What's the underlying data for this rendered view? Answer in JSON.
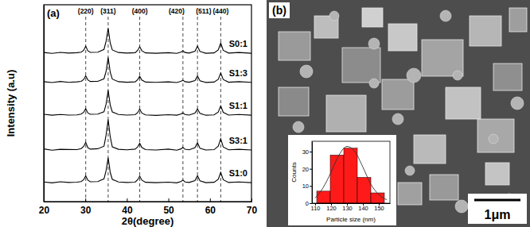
{
  "chart_data": [
    {
      "type": "line",
      "panel_label": "(a)",
      "x_label": "2θ(degree)",
      "y_label": "Intensity (a.u)",
      "xlim": [
        20,
        70
      ],
      "xticks": [
        20,
        30,
        40,
        50,
        60,
        70
      ],
      "ylim": [
        0,
        108
      ],
      "tick_labels": "x",
      "x": [
        20,
        22,
        24,
        26,
        28,
        29,
        29.6,
        30.1,
        30.6,
        31.2,
        33,
        34.5,
        35.0,
        35.5,
        36.0,
        36.5,
        38,
        40,
        42,
        42.6,
        43.1,
        43.6,
        44.5,
        47,
        50,
        52,
        53.0,
        53.5,
        54.0,
        55,
        56.4,
        57.0,
        57.6,
        59,
        61,
        62.0,
        62.6,
        63.2,
        64.5,
        67,
        70
      ],
      "series": [
        {
          "name": "S0:1",
          "color": "#000000",
          "values": [
            81.8,
            81.3,
            81.9,
            81.5,
            81.7,
            82.0,
            83.0,
            85.2,
            82.8,
            81.9,
            82.0,
            83.5,
            88,
            95,
            87,
            83.2,
            81.8,
            81.5,
            81.7,
            83.0,
            85.0,
            82.8,
            81.6,
            81.4,
            81.7,
            81.3,
            82.0,
            82.8,
            81.8,
            81.5,
            82.5,
            85.2,
            82.4,
            81.4,
            81.6,
            83.2,
            87.0,
            83.0,
            81.5,
            81.8,
            81.4
          ]
        },
        {
          "name": "S1:3",
          "color": "#000000",
          "values": [
            65.8,
            65.3,
            65.9,
            65.4,
            65.7,
            66.0,
            67.0,
            69.0,
            66.8,
            65.9,
            66.0,
            67.4,
            71.5,
            79,
            71,
            67.2,
            65.8,
            65.5,
            65.7,
            66.9,
            68.8,
            66.7,
            65.6,
            65.4,
            65.7,
            65.3,
            66.0,
            66.6,
            65.8,
            65.5,
            66.4,
            68.9,
            66.3,
            65.4,
            65.6,
            67.1,
            70.5,
            67.0,
            65.5,
            65.8,
            65.4
          ]
        },
        {
          "name": "S1:1",
          "color": "#000000",
          "values": [
            47.9,
            47.4,
            47.8,
            47.5,
            47.6,
            48.0,
            49.0,
            51.0,
            48.7,
            47.9,
            48.0,
            49.3,
            53.5,
            61,
            53,
            49.2,
            47.8,
            47.5,
            47.7,
            48.8,
            50.8,
            48.6,
            47.6,
            47.3,
            47.7,
            47.4,
            48.0,
            48.7,
            47.8,
            47.5,
            48.5,
            50.8,
            48.4,
            47.4,
            47.6,
            49.1,
            52.5,
            49.0,
            47.5,
            47.8,
            47.4
          ]
        },
        {
          "name": "S3:1",
          "color": "#000000",
          "values": [
            28.9,
            28.2,
            28.7,
            28.6,
            28.5,
            29.1,
            30.3,
            32.5,
            29.6,
            28.8,
            29.0,
            30.4,
            36.5,
            45,
            35.5,
            30.0,
            28.7,
            28.4,
            28.8,
            30.0,
            32.0,
            29.7,
            28.5,
            28.3,
            28.8,
            28.2,
            28.9,
            29.7,
            28.7,
            28.4,
            29.6,
            32.3,
            29.3,
            28.3,
            28.5,
            30.4,
            34.5,
            30.0,
            28.4,
            28.7,
            28.3
          ]
        },
        {
          "name": "S1:0",
          "color": "#000000",
          "values": [
            10.8,
            10.3,
            10.9,
            10.5,
            10.7,
            11.0,
            12.0,
            14.2,
            11.8,
            10.9,
            11.0,
            12.5,
            17,
            24,
            16,
            12.2,
            10.8,
            10.5,
            10.7,
            12.0,
            14.0,
            11.8,
            10.6,
            10.4,
            10.7,
            10.3,
            11.0,
            11.8,
            10.8,
            10.5,
            11.5,
            14.2,
            11.4,
            10.4,
            10.6,
            12.2,
            16.0,
            12.0,
            10.5,
            10.8,
            10.4
          ]
        }
      ],
      "annotations": [
        {
          "text": "(220)",
          "x": 30.1
        },
        {
          "text": "(311)",
          "x": 35.5
        },
        {
          "text": "(400)",
          "x": 43.1
        },
        {
          "text": "(420)",
          "x": 53.5
        },
        {
          "text": "(511)",
          "x": 57.0
        },
        {
          "text": "(440)",
          "x": 62.6
        }
      ]
    },
    {
      "type": "histogram",
      "x_label": "Particle size (nm)",
      "y_label": "Counts",
      "xlim": [
        108,
        157
      ],
      "xticks": [
        110,
        120,
        130,
        140,
        150
      ],
      "ylim": [
        0,
        36
      ],
      "yticks": [
        0,
        10,
        20,
        30
      ],
      "bins": [
        111,
        119.5,
        128,
        136.5,
        145,
        153.5
      ],
      "counts": [
        7,
        28,
        32,
        15,
        6
      ],
      "color": "#ff1a1a",
      "fit": {
        "x": [
          110,
          115,
          120,
          125,
          130,
          135,
          140,
          145,
          150,
          155
        ],
        "values": [
          3,
          9,
          18,
          28,
          33,
          30,
          21,
          11,
          5,
          2
        ]
      }
    }
  ],
  "sem_image": {
    "panel_label": "(b)",
    "scale_bar_label": "1μm"
  }
}
